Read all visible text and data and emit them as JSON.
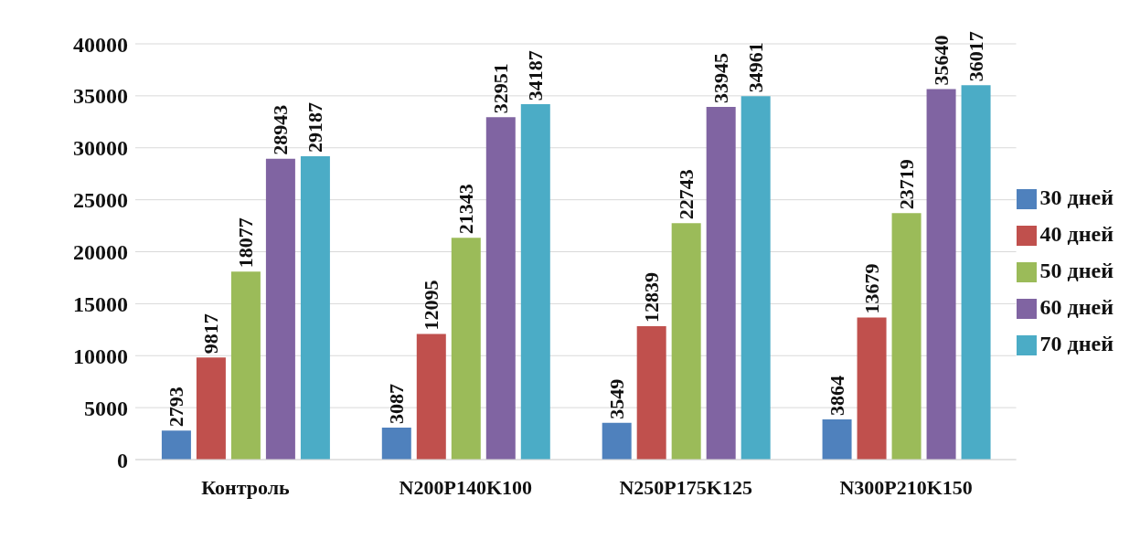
{
  "chart_data": {
    "type": "bar",
    "categories": [
      "Контроль",
      "N200P140K100",
      "N250P175K125",
      "N300P210K150"
    ],
    "series": [
      {
        "name": "30 дней",
        "color": "#4f81bd",
        "values": [
          2793,
          3087,
          3549,
          3864
        ]
      },
      {
        "name": "40 дней",
        "color": "#c0504d",
        "values": [
          9817,
          12095,
          12839,
          13679
        ]
      },
      {
        "name": "50 дней",
        "color": "#9bbb59",
        "values": [
          18077,
          21343,
          22743,
          23719
        ]
      },
      {
        "name": "60 дней",
        "color": "#8064a2",
        "values": [
          28943,
          32951,
          33945,
          35640
        ]
      },
      {
        "name": "70 дней",
        "color": "#4bacc6",
        "values": [
          29187,
          34187,
          34961,
          36017
        ]
      }
    ],
    "ylim": [
      0,
      40000
    ],
    "yticks": [
      0,
      5000,
      10000,
      15000,
      20000,
      25000,
      30000,
      35000,
      40000
    ],
    "grid": "y",
    "legend": "right",
    "data_labels": true
  }
}
